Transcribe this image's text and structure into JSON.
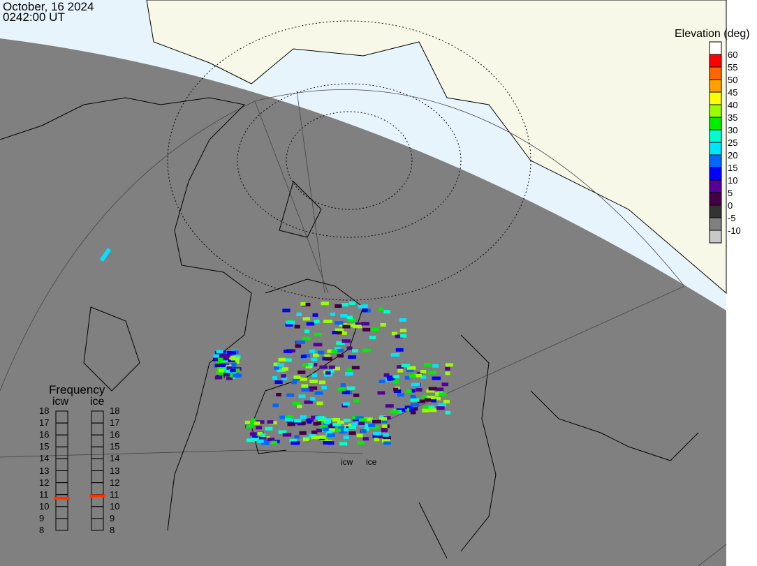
{
  "header": {
    "date": "October, 16 2024",
    "time": "0242:00 UT"
  },
  "legend": {
    "title": "Elevation (deg)",
    "top_color": "#ffffff",
    "bins": [
      {
        "label": "60",
        "color": "#ff0000"
      },
      {
        "label": "55",
        "color": "#ff6600"
      },
      {
        "label": "50",
        "color": "#ffa000"
      },
      {
        "label": "45",
        "color": "#ffff00"
      },
      {
        "label": "40",
        "color": "#99ff00"
      },
      {
        "label": "35",
        "color": "#00ee00"
      },
      {
        "label": "30",
        "color": "#00ffcc"
      },
      {
        "label": "25",
        "color": "#00e5ff"
      },
      {
        "label": "20",
        "color": "#0066ff"
      },
      {
        "label": "15",
        "color": "#0000ff"
      },
      {
        "label": "10",
        "color": "#550099"
      },
      {
        "label": "5",
        "color": "#440044"
      },
      {
        "label": "0",
        "color": "#333333"
      },
      {
        "label": "-5",
        "color": "#808080"
      },
      {
        "label": "-10",
        "color": "#c8c8c8"
      }
    ]
  },
  "frequency": {
    "title": "Frequency",
    "ticks": [
      "18",
      "17",
      "16",
      "15",
      "14",
      "13",
      "12",
      "11",
      "10",
      "9",
      "8"
    ],
    "radars": [
      {
        "name": "icw",
        "value_mhz": 10.7
      },
      {
        "name": "ice",
        "value_mhz": 10.9
      }
    ],
    "marker_color": "#ff3300"
  },
  "map": {
    "night_color": "#808080",
    "ocean_color": "#e8f4fc",
    "land_color": "#f8f8e8",
    "radar_sites": [
      {
        "name": "icw"
      },
      {
        "name": "ice"
      }
    ]
  }
}
